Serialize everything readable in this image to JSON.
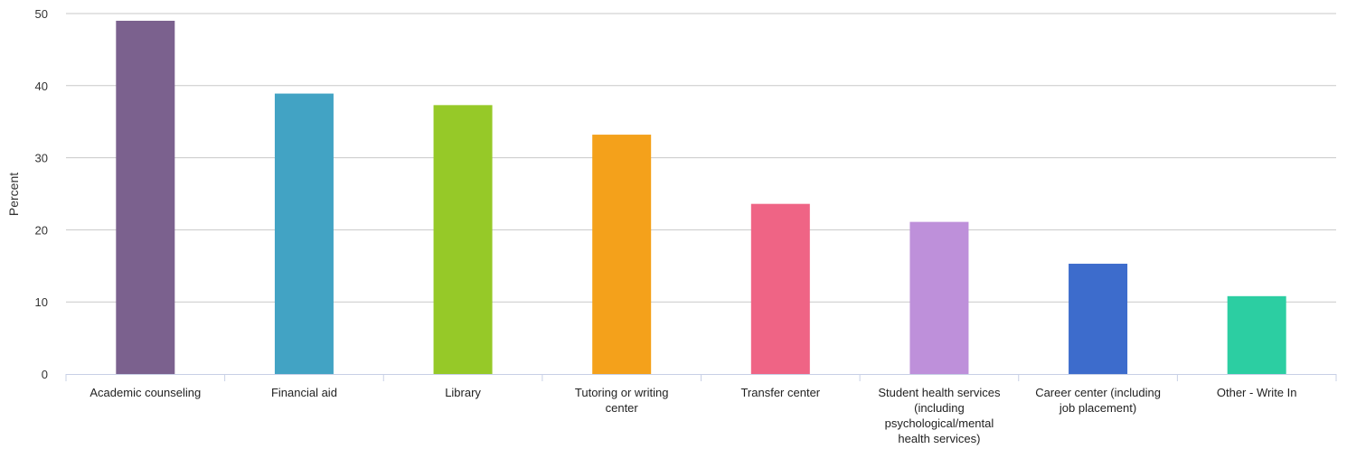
{
  "chart_data": {
    "type": "bar",
    "title": "",
    "xlabel": "",
    "ylabel": "Percent",
    "ylim": [
      0,
      50
    ],
    "yticks": [
      0,
      10,
      20,
      30,
      40,
      50
    ],
    "grid": true,
    "legend": "none",
    "categories": [
      "Academic counseling",
      "Financial aid",
      "Library",
      "Tutoring or writing center",
      "Transfer center",
      "Student health services (including psychological/mental health services)",
      "Career center (including job placement)",
      "Other - Write In"
    ],
    "category_lines": [
      [
        "Academic counseling"
      ],
      [
        "Financial aid"
      ],
      [
        "Library"
      ],
      [
        "Tutoring or writing",
        "center"
      ],
      [
        "Transfer center"
      ],
      [
        "Student health services",
        "(including",
        "psychological/mental",
        "health services)"
      ],
      [
        "Career center (including",
        "job placement)"
      ],
      [
        "Other - Write In"
      ]
    ],
    "values": [
      49,
      38.9,
      37.3,
      33.2,
      23.6,
      21.1,
      15.3,
      10.8
    ],
    "colors": [
      "#7b618e",
      "#42a3c4",
      "#96c928",
      "#f4a11b",
      "#ef6485",
      "#be90da",
      "#3d6ccc",
      "#2ccea2"
    ],
    "grid_color": "#c8c8c8",
    "axis_color": "#c8d0e6"
  }
}
